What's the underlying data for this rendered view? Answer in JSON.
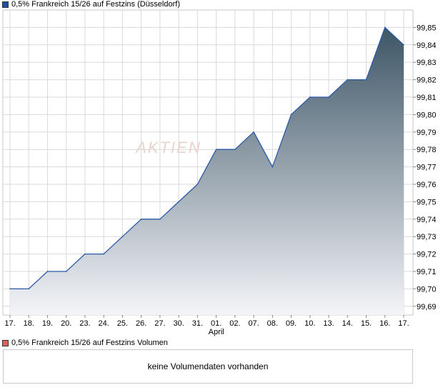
{
  "price_legend": {
    "label": "0,5% Frankreich 15/26 auf Festzins (Düsseldorf)",
    "color": "#1f4fa8"
  },
  "volume_legend": {
    "label": "0,5% Frankreich 15/26 auf Festzins Volumen",
    "color": "#e06060"
  },
  "volume_panel": {
    "message": "keine Volumendaten vorhanden"
  },
  "watermark": {
    "text": "AKTIEN"
  },
  "chart_data": {
    "type": "area",
    "categories": [
      "17.",
      "18.",
      "19.",
      "20.",
      "23.",
      "24.",
      "25.",
      "26.",
      "27.",
      "30.",
      "31.",
      "01.",
      "02.",
      "07.",
      "08.",
      "09.",
      "10.",
      "13.",
      "14.",
      "15.",
      "16.",
      "17."
    ],
    "month_labels": [
      {
        "index": 11,
        "label": "April"
      }
    ],
    "series": [
      {
        "values": [
          99.7,
          99.7,
          99.71,
          99.71,
          99.72,
          99.72,
          99.73,
          99.74,
          99.74,
          99.75,
          99.76,
          99.78,
          99.78,
          99.79,
          99.77,
          99.8,
          99.81,
          99.81,
          99.82,
          99.82,
          99.85,
          99.84
        ]
      }
    ],
    "y_ticks": [
      "99,69",
      "99,70",
      "99,71",
      "99,72",
      "99,73",
      "99,74",
      "99,75",
      "99,76",
      "99,77",
      "99,78",
      "99,79",
      "99,80",
      "99,81",
      "99,82",
      "99,83",
      "99,84",
      "99,85"
    ],
    "ylim": [
      99.685,
      99.86
    ],
    "grid": true,
    "colors": {
      "line": "#2a5aa8",
      "fill_top": "#3d5566",
      "fill_bottom": "#f4f5f8",
      "grid": "#d9d9d9"
    }
  }
}
